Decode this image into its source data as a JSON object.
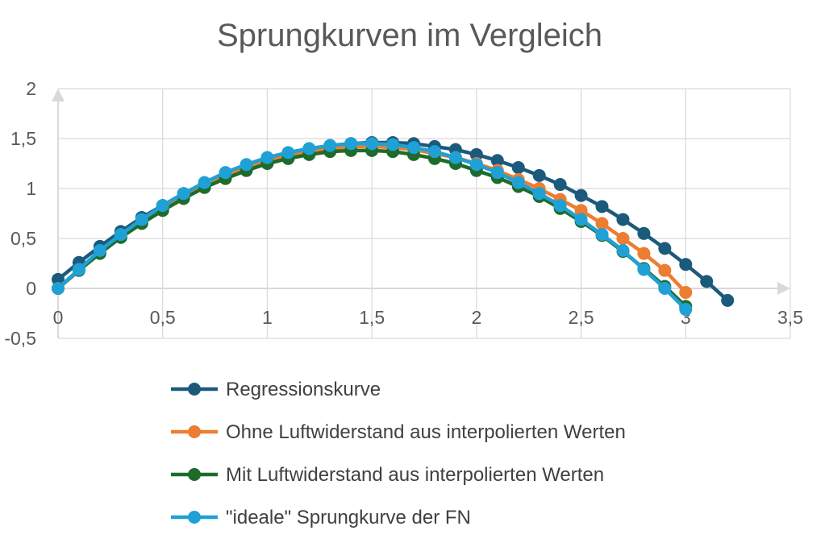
{
  "chart_data": {
    "type": "line",
    "title": "Sprungkurven im Vergleich",
    "xlabel": "",
    "ylabel": "",
    "xlim": [
      0,
      3.5
    ],
    "ylim": [
      -0.5,
      2
    ],
    "x_ticks": [
      0,
      0.5,
      1,
      1.5,
      2,
      2.5,
      3,
      3.5
    ],
    "x_tick_labels": [
      "0",
      "0,5",
      "1",
      "1,5",
      "2",
      "2,5",
      "3",
      "3,5"
    ],
    "y_ticks": [
      -0.5,
      0,
      0.5,
      1,
      1.5,
      2
    ],
    "y_tick_labels": [
      "-0,5",
      "0",
      "0,5",
      "1",
      "1,5",
      "2"
    ],
    "grid": true,
    "legend_position": "bottom",
    "series": [
      {
        "name": "Regressionskurve",
        "color": "#1c5a7c",
        "x": [
          0,
          0.1,
          0.2,
          0.3,
          0.4,
          0.5,
          0.6,
          0.7,
          0.8,
          0.9,
          1.0,
          1.1,
          1.2,
          1.3,
          1.4,
          1.5,
          1.6,
          1.7,
          1.8,
          1.9,
          2.0,
          2.1,
          2.2,
          2.3,
          2.4,
          2.5,
          2.6,
          2.7,
          2.8,
          2.9,
          3.0,
          3.1,
          3.2
        ],
        "y": [
          0.09,
          0.26,
          0.42,
          0.57,
          0.71,
          0.83,
          0.95,
          1.05,
          1.14,
          1.22,
          1.29,
          1.35,
          1.39,
          1.43,
          1.45,
          1.46,
          1.46,
          1.45,
          1.42,
          1.39,
          1.34,
          1.28,
          1.21,
          1.13,
          1.04,
          0.93,
          0.82,
          0.69,
          0.55,
          0.4,
          0.24,
          0.07,
          -0.12
        ]
      },
      {
        "name": "Ohne Luftwiderstand aus interpolierten Werten",
        "color": "#ed7d31",
        "x": [
          0,
          0.1,
          0.2,
          0.3,
          0.4,
          0.5,
          0.6,
          0.7,
          0.8,
          0.9,
          1.0,
          1.1,
          1.2,
          1.3,
          1.4,
          1.5,
          1.6,
          1.7,
          1.8,
          1.9,
          2.0,
          2.1,
          2.2,
          2.3,
          2.4,
          2.5,
          2.6,
          2.7,
          2.8,
          2.9,
          3.0
        ],
        "y": [
          0.0,
          0.19,
          0.37,
          0.53,
          0.68,
          0.81,
          0.93,
          1.04,
          1.13,
          1.21,
          1.28,
          1.33,
          1.37,
          1.4,
          1.42,
          1.42,
          1.41,
          1.39,
          1.35,
          1.31,
          1.25,
          1.18,
          1.09,
          1.0,
          0.89,
          0.78,
          0.65,
          0.5,
          0.35,
          0.18,
          -0.04
        ]
      },
      {
        "name": "Mit Luftwiderstand aus interpolierten Werten",
        "color": "#1e6b2b",
        "x": [
          0,
          0.1,
          0.2,
          0.3,
          0.4,
          0.5,
          0.6,
          0.7,
          0.8,
          0.9,
          1.0,
          1.1,
          1.2,
          1.3,
          1.4,
          1.5,
          1.6,
          1.7,
          1.8,
          1.9,
          2.0,
          2.1,
          2.2,
          2.3,
          2.4,
          2.5,
          2.6,
          2.7,
          2.8,
          2.9,
          3.0
        ],
        "y": [
          0.0,
          0.18,
          0.35,
          0.51,
          0.65,
          0.78,
          0.9,
          1.01,
          1.1,
          1.18,
          1.25,
          1.3,
          1.34,
          1.37,
          1.38,
          1.38,
          1.37,
          1.34,
          1.3,
          1.25,
          1.18,
          1.11,
          1.02,
          0.92,
          0.8,
          0.67,
          0.53,
          0.37,
          0.2,
          0.02,
          -0.18
        ]
      },
      {
        "name": "\"ideale\" Sprungkurve der FN",
        "color": "#1fa1d6",
        "x": [
          0,
          0.1,
          0.2,
          0.3,
          0.4,
          0.5,
          0.6,
          0.7,
          0.8,
          0.9,
          1.0,
          1.1,
          1.2,
          1.3,
          1.4,
          1.5,
          1.6,
          1.7,
          1.8,
          1.9,
          2.0,
          2.1,
          2.2,
          2.3,
          2.4,
          2.5,
          2.6,
          2.7,
          2.8,
          2.9,
          3.0
        ],
        "y": [
          0.0,
          0.19,
          0.38,
          0.54,
          0.69,
          0.83,
          0.95,
          1.06,
          1.16,
          1.24,
          1.31,
          1.36,
          1.4,
          1.43,
          1.45,
          1.45,
          1.44,
          1.41,
          1.37,
          1.31,
          1.24,
          1.16,
          1.06,
          0.95,
          0.83,
          0.69,
          0.54,
          0.38,
          0.19,
          0.0,
          -0.21
        ]
      }
    ]
  }
}
